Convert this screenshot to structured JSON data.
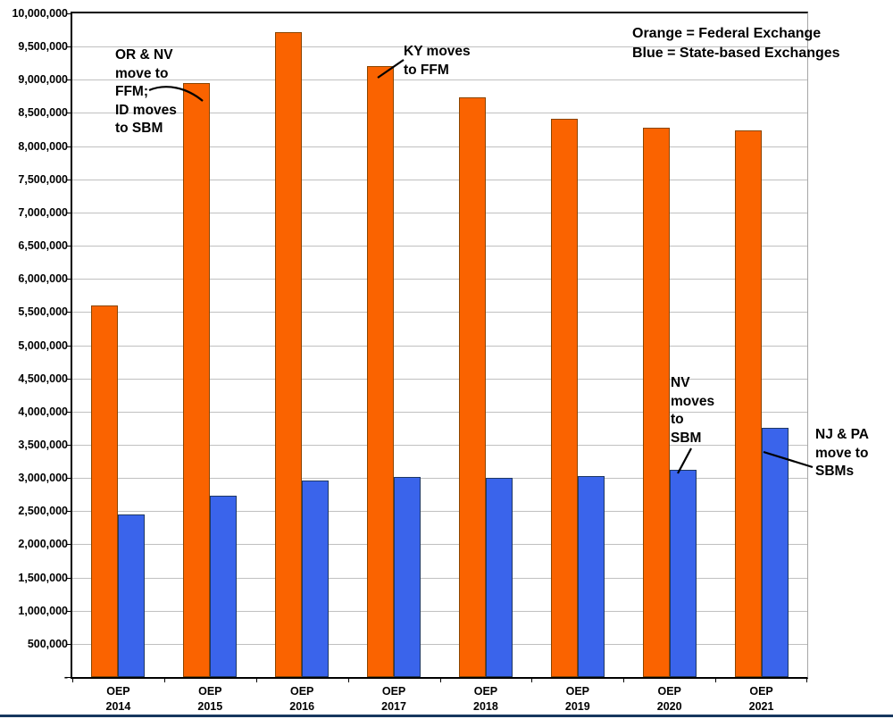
{
  "legend": {
    "line1": "Orange = Federal Exchange",
    "line2": "Blue = State-based Exchanges"
  },
  "colors": {
    "federal_fill": "#fa6300",
    "federal_border": "#8a4500",
    "state_fill": "#3a64eb",
    "state_border": "#1f3864",
    "gridline": "#c0c0c0",
    "axis": "#000000",
    "image_bottom_rule": "#17375e"
  },
  "chart_data": {
    "type": "bar",
    "title": "",
    "xlabel": "",
    "ylabel": "",
    "categories": [
      "OEP 2014",
      "OEP 2015",
      "OEP 2016",
      "OEP 2017",
      "OEP 2018",
      "OEP 2019",
      "OEP 2020",
      "OEP 2021"
    ],
    "series": [
      {
        "name": "Federal Exchange",
        "color": "#fa6300",
        "values": [
          5600000,
          8950000,
          9720000,
          9200000,
          8740000,
          8410000,
          8280000,
          8240000
        ]
      },
      {
        "name": "State-based Exchanges",
        "color": "#3a64eb",
        "values": [
          2450000,
          2730000,
          2960000,
          3010000,
          3000000,
          3030000,
          3120000,
          3760000
        ]
      }
    ],
    "ylim": [
      0,
      10000000
    ],
    "ytick_interval": 500000,
    "ytick_labels": [
      "10,000,000",
      "9,500,000",
      "9,000,000",
      "8,500,000",
      "8,000,000",
      "7,500,000",
      "7,000,000",
      "6,500,000",
      "6,000,000",
      "5,500,000",
      "5,000,000",
      "4,500,000",
      "4,000,000",
      "3,500,000",
      "3,000,000",
      "2,500,000",
      "2,000,000",
      "1,500,000",
      "1,000,000",
      "500,000",
      "-"
    ],
    "grid": true,
    "legend_position": "top-right",
    "annotations": [
      {
        "id": "or-nv",
        "lines": [
          "OR & NV",
          "move to",
          "FFM;",
          "ID moves",
          "to SBM"
        ],
        "target": "OEP 2015 federal bar"
      },
      {
        "id": "ky",
        "lines": [
          "KY moves",
          "to FFM"
        ],
        "target": "OEP 2017 federal bar"
      },
      {
        "id": "nv",
        "lines": [
          "NV",
          "moves",
          "to",
          "SBM"
        ],
        "target": "OEP 2020 state bar"
      },
      {
        "id": "nj-pa",
        "lines": [
          "NJ & PA",
          "move to",
          "SBMs"
        ],
        "target": "OEP 2021 state bar"
      }
    ]
  }
}
